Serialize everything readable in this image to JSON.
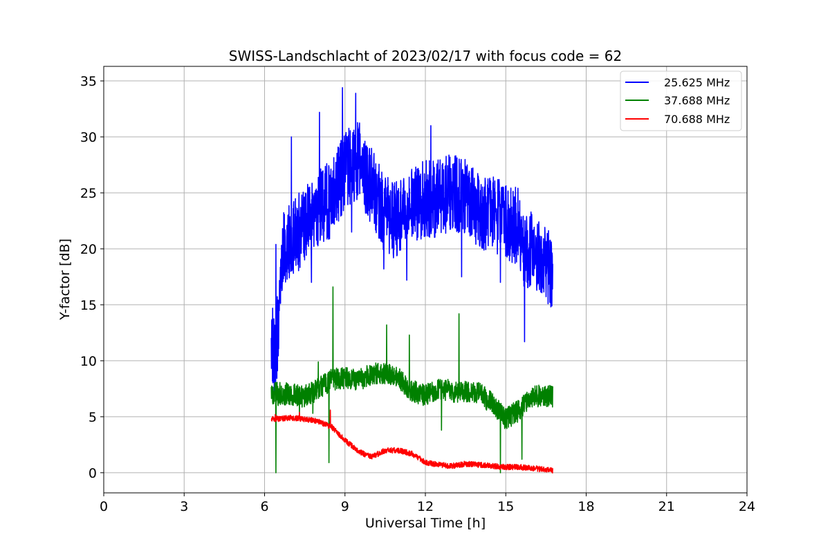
{
  "chart_data": {
    "type": "line",
    "title": "SWISS-Landschlacht of 2023/02/17 with focus code = 62",
    "xlabel": "Universal Time [h]",
    "ylabel": "Y-factor [dB]",
    "xlim": [
      0,
      24
    ],
    "ylim": [
      -1.8,
      36.3
    ],
    "xticks": [
      0,
      3,
      6,
      9,
      12,
      15,
      18,
      21,
      24
    ],
    "yticks": [
      0,
      5,
      10,
      15,
      20,
      25,
      30,
      35
    ],
    "grid": true,
    "legend_position": "top-right",
    "series": [
      {
        "name": "25.625 MHz",
        "color": "#0000ff",
        "noise": 3.5,
        "x": [
          6.25,
          6.4,
          6.5,
          6.7,
          7.0,
          7.5,
          8.0,
          8.5,
          9.0,
          9.5,
          10.0,
          10.5,
          11.0,
          11.5,
          12.0,
          12.5,
          13.0,
          13.5,
          14.0,
          14.5,
          15.0,
          15.5,
          15.7,
          16.0,
          16.5,
          16.75
        ],
        "y": [
          12.0,
          10.0,
          13.0,
          20.0,
          21.0,
          22.0,
          23.5,
          24.5,
          27.0,
          28.0,
          25.5,
          23.0,
          22.5,
          24.0,
          24.5,
          24.5,
          25.0,
          24.5,
          23.5,
          23.0,
          22.5,
          22.0,
          19.5,
          20.0,
          19.0,
          17.5
        ]
      },
      {
        "name": "37.688 MHz",
        "color": "#008000",
        "noise": 1.0,
        "x": [
          6.25,
          6.5,
          7.0,
          7.5,
          8.0,
          8.5,
          9.0,
          9.5,
          10.0,
          10.5,
          11.0,
          11.5,
          12.0,
          12.5,
          13.0,
          13.5,
          14.0,
          14.5,
          15.0,
          15.5,
          16.0,
          16.5,
          16.75
        ],
        "y": [
          7.1,
          7.1,
          7.0,
          6.8,
          7.5,
          8.3,
          8.5,
          8.3,
          8.8,
          8.9,
          8.4,
          7.3,
          6.9,
          7.5,
          7.3,
          7.2,
          7.1,
          6.2,
          4.8,
          5.6,
          6.8,
          6.9,
          6.8
        ]
      },
      {
        "name": "70.688 MHz",
        "color": "#ff0000",
        "noise": 0.25,
        "x": [
          6.25,
          7.0,
          7.5,
          8.0,
          8.5,
          9.0,
          9.5,
          10.0,
          10.5,
          11.0,
          11.5,
          12.0,
          12.5,
          13.0,
          13.5,
          14.0,
          14.5,
          15.0,
          15.5,
          16.0,
          16.75
        ],
        "y": [
          4.8,
          4.9,
          4.8,
          4.6,
          4.1,
          2.9,
          1.9,
          1.4,
          2.0,
          2.0,
          1.7,
          0.9,
          0.7,
          0.6,
          0.8,
          0.7,
          0.6,
          0.5,
          0.5,
          0.4,
          0.2
        ]
      }
    ],
    "spikes": [
      {
        "series": 0,
        "x": 6.3,
        "y": 14.7
      },
      {
        "series": 0,
        "x": 6.42,
        "y": 20.4
      },
      {
        "series": 0,
        "x": 6.62,
        "y": 16.5
      },
      {
        "series": 0,
        "x": 7.0,
        "y": 30.0
      },
      {
        "series": 0,
        "x": 7.75,
        "y": 17.0
      },
      {
        "series": 0,
        "x": 8.05,
        "y": 32.2
      },
      {
        "series": 0,
        "x": 8.9,
        "y": 34.4
      },
      {
        "series": 0,
        "x": 9.4,
        "y": 33.9
      },
      {
        "series": 0,
        "x": 9.25,
        "y": 21.5
      },
      {
        "series": 0,
        "x": 10.45,
        "y": 18.2
      },
      {
        "series": 0,
        "x": 11.3,
        "y": 17.2
      },
      {
        "series": 0,
        "x": 12.2,
        "y": 31.0
      },
      {
        "series": 0,
        "x": 13.35,
        "y": 17.5
      },
      {
        "series": 0,
        "x": 14.8,
        "y": 17.0
      },
      {
        "series": 0,
        "x": 15.7,
        "y": 11.7
      },
      {
        "series": 0,
        "x": 16.65,
        "y": 15.2
      },
      {
        "series": 1,
        "x": 6.42,
        "y": 0.0
      },
      {
        "series": 1,
        "x": 6.5,
        "y": 6.0
      },
      {
        "series": 1,
        "x": 7.3,
        "y": 5.0
      },
      {
        "series": 1,
        "x": 7.8,
        "y": 5.3
      },
      {
        "series": 1,
        "x": 8.0,
        "y": 9.9
      },
      {
        "series": 1,
        "x": 8.4,
        "y": 0.9
      },
      {
        "series": 1,
        "x": 8.55,
        "y": 16.6
      },
      {
        "series": 1,
        "x": 10.55,
        "y": 13.2
      },
      {
        "series": 1,
        "x": 11.4,
        "y": 12.3
      },
      {
        "series": 1,
        "x": 12.6,
        "y": 3.8
      },
      {
        "series": 1,
        "x": 13.25,
        "y": 14.2
      },
      {
        "series": 1,
        "x": 14.8,
        "y": 0.0
      },
      {
        "series": 1,
        "x": 15.6,
        "y": 1.2
      },
      {
        "series": 2,
        "x": 6.4,
        "y": 5.2
      },
      {
        "series": 2,
        "x": 7.3,
        "y": 5.4
      },
      {
        "series": 2,
        "x": 8.45,
        "y": 5.6
      }
    ]
  }
}
